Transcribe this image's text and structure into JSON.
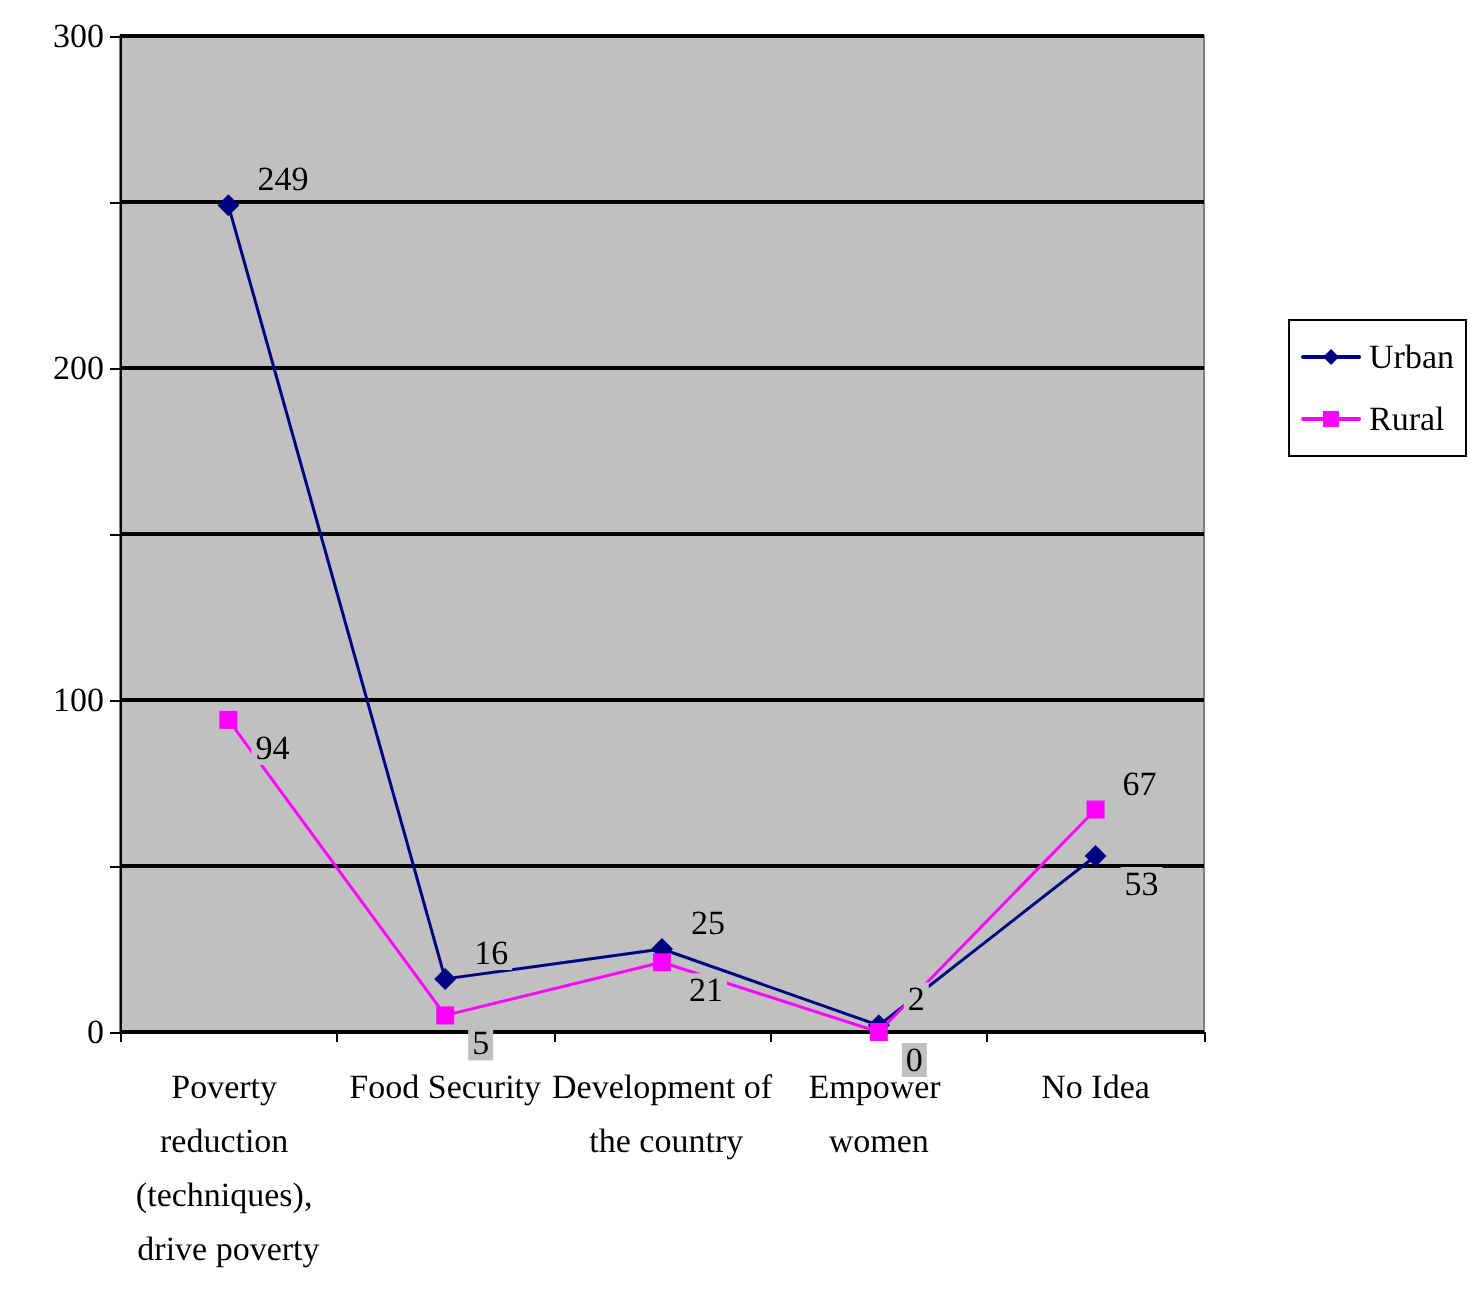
{
  "chart_data": {
    "type": "line",
    "categories": [
      "Poverty reduction (techniques), drive poverty",
      "Food Security",
      "Development of the country",
      "Empower women",
      "No Idea"
    ],
    "series": [
      {
        "name": "Urban",
        "color": "#000080",
        "marker": "diamond",
        "values": [
          249,
          16,
          25,
          2,
          53
        ]
      },
      {
        "name": "Rural",
        "color": "#ff00ff",
        "marker": "square",
        "values": [
          94,
          5,
          21,
          0,
          67
        ]
      }
    ],
    "ylim": [
      0,
      300
    ],
    "yticks": [
      0,
      {
        "value": 50,
        "label": null
      },
      100,
      {
        "value": 150,
        "label": null
      },
      200,
      {
        "value": 250,
        "label": null
      },
      300
    ],
    "grid": "y",
    "legend": "right",
    "data_labels": true,
    "line_style": "solid"
  }
}
